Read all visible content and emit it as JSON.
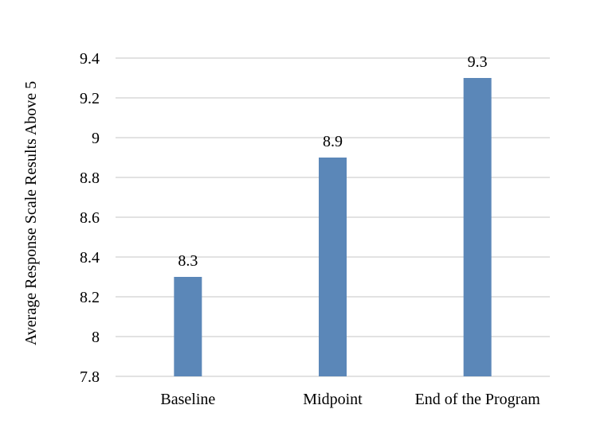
{
  "chart_data": {
    "type": "bar",
    "title": "",
    "xlabel": "",
    "ylabel": "Average Response Scale Results Above 5",
    "categories": [
      "Baseline",
      "Midpoint",
      "End of the Program"
    ],
    "values": [
      8.3,
      8.9,
      9.3
    ],
    "data_labels": [
      "8.3",
      "8.9",
      "9.3"
    ],
    "ylim": [
      7.8,
      9.4
    ],
    "yticks": [
      7.8,
      8,
      8.2,
      8.4,
      8.6,
      8.8,
      9,
      9.2,
      9.4
    ],
    "ytick_labels": [
      "7.8",
      "8",
      "8.2",
      "8.4",
      "8.6",
      "8.8",
      "9",
      "9.2",
      "9.4"
    ],
    "grid": true,
    "legend": "none",
    "bar_color": "#5b87b8",
    "grid_color": "#d9d9d9"
  }
}
